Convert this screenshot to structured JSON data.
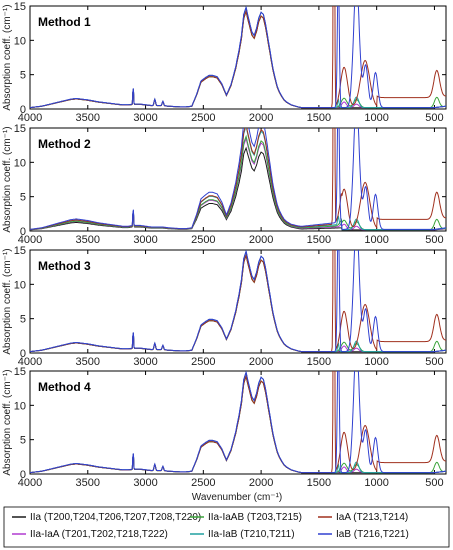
{
  "chart_data": {
    "type": "line",
    "panels": [
      {
        "title": "Method 1",
        "ylabel": "Absorption coeff. (cm⁻¹)",
        "ylim": [
          0,
          15
        ],
        "xlim": [
          4000,
          400
        ]
      },
      {
        "title": "Method 2",
        "ylabel": "Absorption coeff. (cm⁻¹)",
        "ylim": [
          0,
          15
        ],
        "xlim": [
          4000,
          400
        ]
      },
      {
        "title": "Method 3",
        "ylabel": "Absorption coeff. (cm⁻¹)",
        "ylim": [
          0,
          15
        ],
        "xlim": [
          4000,
          400
        ]
      },
      {
        "title": "Method 4",
        "ylabel": "Absorption coeff. (cm⁻¹)",
        "ylim": [
          0,
          15
        ],
        "xlim": [
          4000,
          400
        ]
      }
    ],
    "xlabel": "Wavenumber (cm⁻¹)",
    "x_ticks": [
      4000,
      3500,
      3000,
      2500,
      2000,
      1500,
      1000,
      500
    ],
    "y_ticks": [
      0,
      5,
      10,
      15
    ],
    "grid": false,
    "legend_position": "bottom",
    "series": [
      {
        "name": "IIa (T200,T204,T206,T207,T208,T220)",
        "color": "#1a1a1a"
      },
      {
        "name": "IIa-IaA (T201,T202,T218,T222)",
        "color": "#b03ad0"
      },
      {
        "name": "IIa-IaAB (T203,T215)",
        "color": "#3aa33a"
      },
      {
        "name": "IIa-IaB (T210,T211)",
        "color": "#20a0a0"
      },
      {
        "name": "IaA (T213,T214)",
        "color": "#a0301e"
      },
      {
        "name": "IaB (T216,T221)",
        "color": "#3040d0"
      }
    ],
    "spectrum_shape": {
      "x": [
        4000,
        3900,
        3800,
        3700,
        3650,
        3600,
        3500,
        3400,
        3300,
        3200,
        3150,
        3100,
        3050,
        3000,
        2950,
        2900,
        2850,
        2800,
        2700,
        2650,
        2600,
        2560,
        2520,
        2480,
        2450,
        2420,
        2380,
        2340,
        2300,
        2260,
        2220,
        2190,
        2170,
        2150,
        2130,
        2110,
        2080,
        2060,
        2040,
        2020,
        2000,
        1980,
        1960,
        1940,
        1920,
        1900,
        1880,
        1860,
        1840,
        1820,
        1800,
        1780,
        1760,
        1740,
        1720,
        1700,
        1680,
        1650,
        1620,
        1600,
        1550,
        1500,
        1450,
        1400,
        1350,
        1300,
        1250,
        1200,
        1150,
        1100,
        1050,
        1000,
        950,
        900,
        850,
        800,
        700,
        600,
        500,
        450,
        400
      ],
      "y": [
        0.2,
        0.4,
        0.8,
        1.2,
        1.4,
        1.5,
        1.3,
        1.0,
        0.8,
        0.6,
        0.6,
        0.7,
        0.7,
        0.6,
        0.5,
        0.5,
        0.5,
        0.4,
        0.3,
        0.3,
        0.4,
        2.0,
        4.0,
        4.5,
        4.8,
        4.8,
        4.6,
        3.6,
        2.0,
        3.5,
        6.0,
        8.5,
        10.5,
        13.5,
        14.5,
        13.0,
        11.0,
        10.5,
        11.5,
        13.0,
        13.8,
        13.5,
        12.0,
        10.0,
        8.0,
        6.0,
        4.5,
        3.2,
        2.4,
        1.8,
        1.3,
        1.0,
        0.8,
        0.6,
        0.5,
        0.4,
        0.3,
        0.2,
        0.2,
        0.2,
        0.2,
        0.2,
        0.2,
        0.2,
        0.2,
        0.2,
        0.2,
        0.2,
        0.2,
        0.2,
        0.2,
        0.2,
        0.2,
        0.2,
        0.2,
        0.2,
        0.2,
        0.2,
        0.2,
        0.3,
        0.4
      ]
    }
  }
}
